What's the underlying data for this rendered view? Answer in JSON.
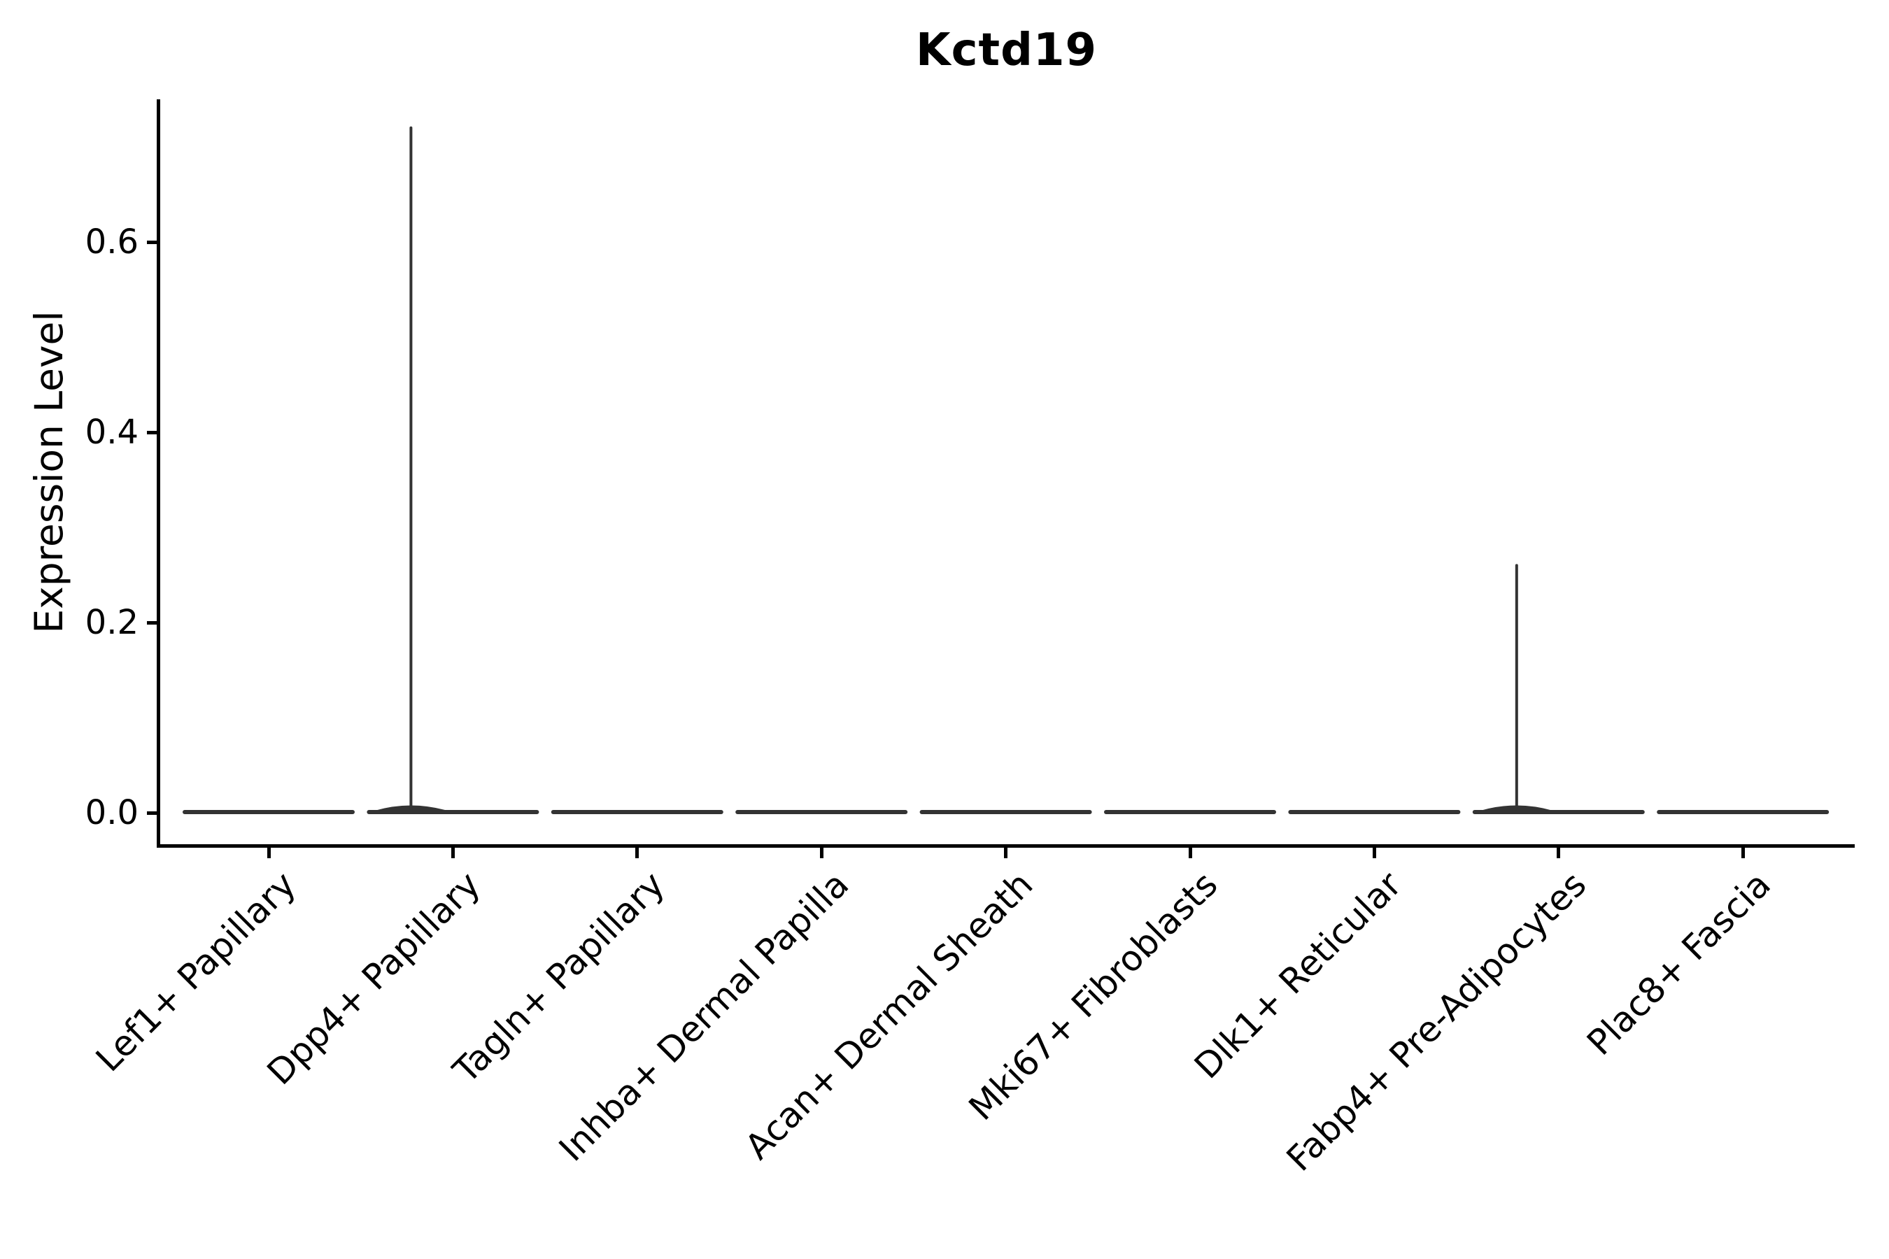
{
  "chart_data": {
    "type": "violin",
    "title": "Kctd19",
    "xlabel": "",
    "ylabel": "Expression Level",
    "ylim": [
      0,
      0.75
    ],
    "yticks": [
      0.0,
      0.2,
      0.4,
      0.6
    ],
    "ytick_labels": [
      "0.0",
      "0.2",
      "0.4",
      "0.6"
    ],
    "categories": [
      "Lef1+ Papillary",
      "Dpp4+ Papillary",
      "Tagln+ Papillary",
      "Inhba+ Dermal Papilla",
      "Acan+ Dermal Sheath",
      "Mki67+ Fibroblasts",
      "Dlk1+ Reticular",
      "Fabp4+ Pre-Adipocytes",
      "Plac8+ Fascia"
    ],
    "series": [
      {
        "name": "max_expression_level",
        "values": [
          0,
          0.72,
          0,
          0,
          0,
          0,
          0,
          0.26,
          0
        ]
      }
    ],
    "violin_shape_note": "flat baseline at 0 for every cluster; thin vertical density spike only for Dpp4+ Papillary (to 0.72) and Fabp4+ Pre-Adipocytes (to 0.26)",
    "grid": false,
    "legend_position": "none",
    "x_label_rotation_deg": 45,
    "violin_color": "#333333",
    "axis_color": "#000000",
    "background_color": "#ffffff"
  }
}
